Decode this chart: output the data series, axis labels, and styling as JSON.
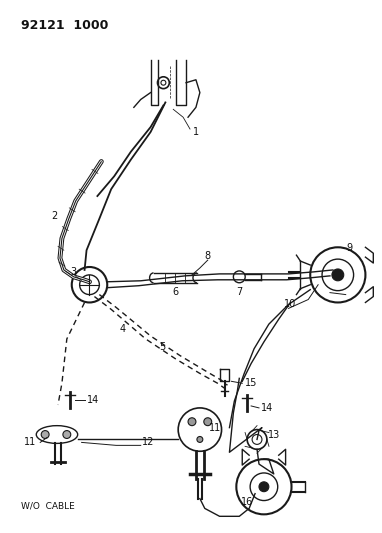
{
  "title": "92121 1000",
  "wocable": "W/O CABLE",
  "bg": "#ffffff",
  "lc": "#1a1a1a",
  "tc": "#111111",
  "fig_w": 3.82,
  "fig_h": 5.33,
  "dpi": 100
}
